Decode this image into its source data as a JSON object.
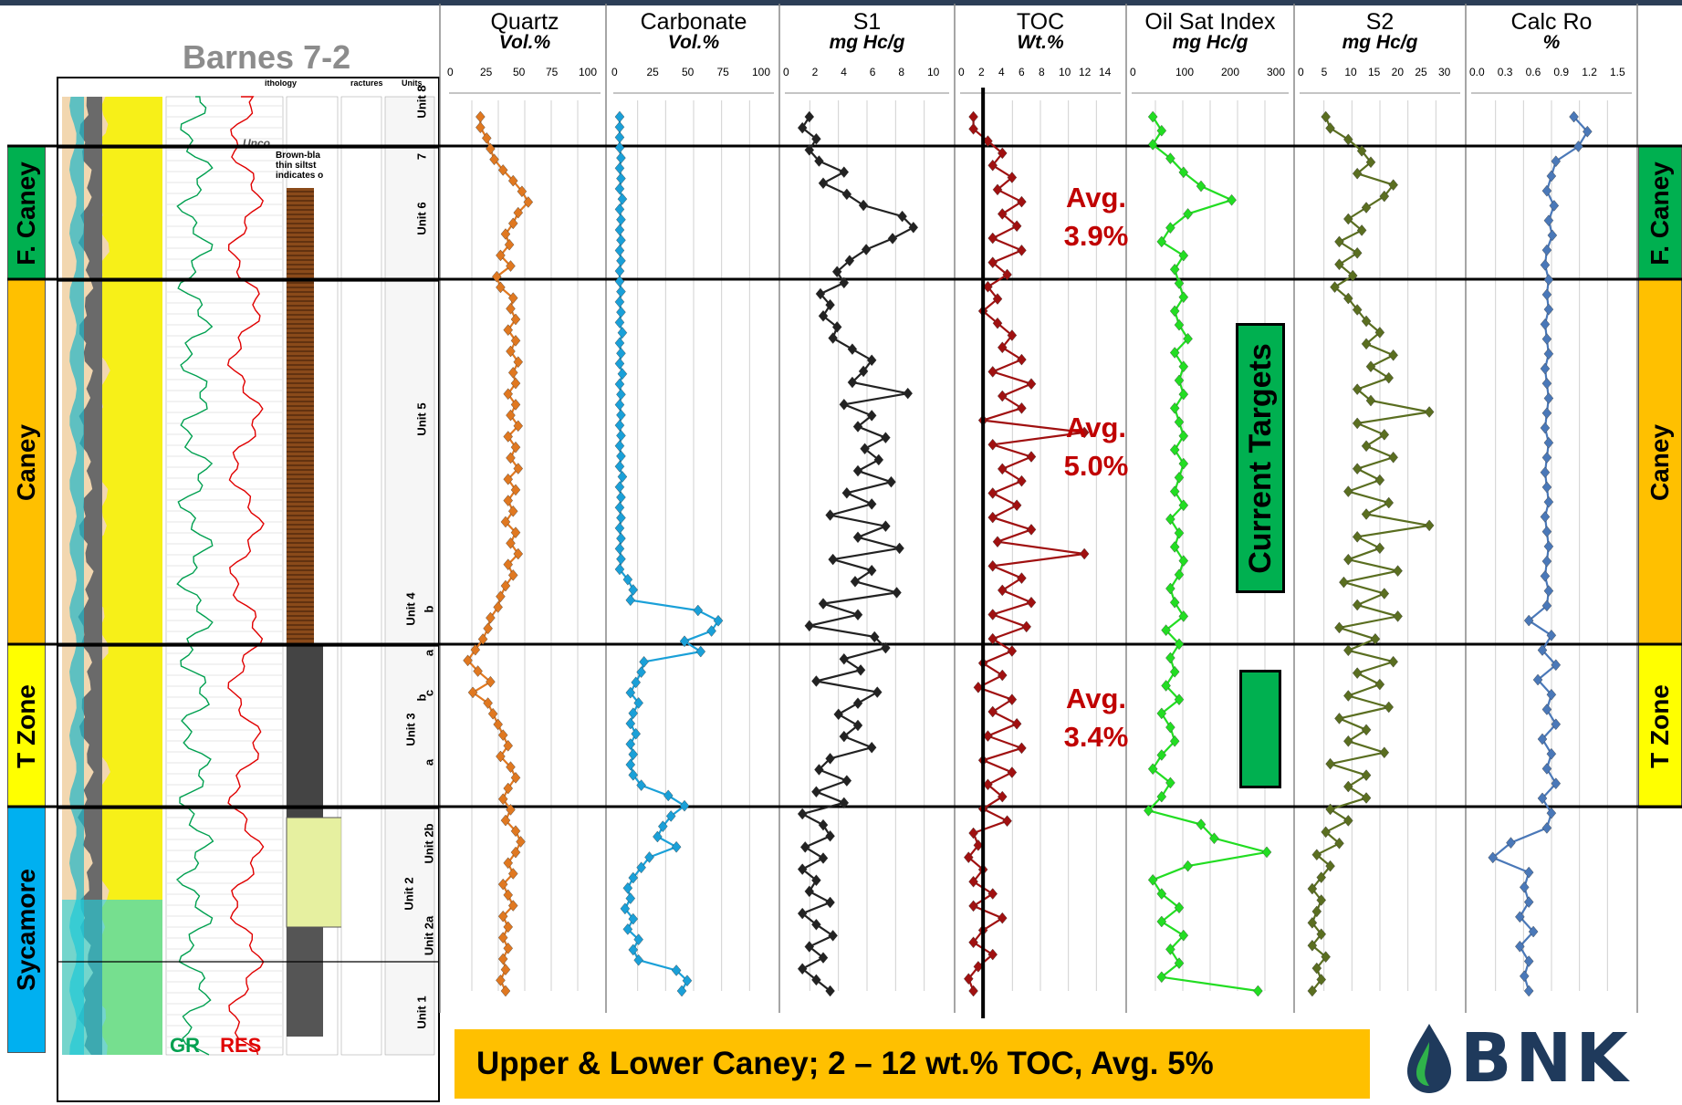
{
  "well_title": "Barnes 7-2",
  "zones_left": [
    {
      "label": "F. Caney",
      "color": "#00b050"
    },
    {
      "label": "Caney",
      "color": "#ffc000"
    },
    {
      "label": "T Zone",
      "color": "#ffff00"
    },
    {
      "label": "Sycamore",
      "color": "#00b0f0"
    }
  ],
  "zones_right": [
    {
      "label": "F. Caney",
      "color": "#00b050"
    },
    {
      "label": "Caney",
      "color": "#ffc000"
    },
    {
      "label": "T Zone",
      "color": "#ffff00"
    }
  ],
  "log_panel": {
    "column_headers": [
      "ithology",
      "ractures",
      "Units"
    ],
    "units": [
      "Unit 8",
      "7",
      "Unit 6",
      "Unit 5",
      "b",
      "Unit 4",
      "a",
      "c",
      "b",
      "Unit 3",
      "a",
      "Unit 2b",
      "Unit 2",
      "Unit 2a",
      "Unit 1"
    ],
    "annotations": [
      "Brown-bla",
      "thin siltst",
      "indicates o",
      "Unco"
    ],
    "gr_label": "GR",
    "res_label": "RES",
    "gr_color": "#00a050",
    "res_color": "#e00000"
  },
  "tracks": [
    {
      "name": "Quartz",
      "unit": "Vol.%",
      "ticks": [
        "0",
        "25",
        "50",
        "75",
        "100"
      ]
    },
    {
      "name": "Carbonate",
      "unit": "Vol.%",
      "ticks": [
        "0",
        "25",
        "50",
        "75",
        "100"
      ]
    },
    {
      "name": "S1",
      "unit": "mg Hc/g",
      "ticks": [
        "0",
        "2",
        "4",
        "6",
        "8",
        "10"
      ]
    },
    {
      "name": "TOC",
      "unit": "Wt.%",
      "ticks": [
        "0",
        "2",
        "4",
        "6",
        "8",
        "10",
        "12",
        "14"
      ]
    },
    {
      "name": "Oil Sat Index",
      "unit": "mg Hc/g",
      "ticks": [
        "0",
        "100",
        "200",
        "300"
      ]
    },
    {
      "name": "S2",
      "unit": "mg Hc/g",
      "ticks": [
        "0",
        "5",
        "10",
        "15",
        "20",
        "25",
        "30"
      ]
    },
    {
      "name": "Calc Ro",
      "unit": "%",
      "ticks": [
        "0.0",
        "0.3",
        "0.6",
        "0.9",
        "1.2",
        "1.5"
      ]
    }
  ],
  "averages": [
    {
      "line1": "Avg.",
      "line2": "3.9%"
    },
    {
      "line1": "Avg.",
      "line2": "5.0%"
    },
    {
      "line1": "Avg.",
      "line2": "3.4%"
    }
  ],
  "targets_label": "Current Targets",
  "banner_text": "Upper & Lower Caney; 2 – 12 wt.% TOC, Avg. 5%",
  "logo_text": "BNK",
  "colors": {
    "quartz": "#e07820",
    "carbonate": "#1aa0d8",
    "s1": "#222222",
    "toc": "#a01010",
    "osi": "#22dd22",
    "s2": "#5a6e20",
    "ro": "#4a78b8",
    "toc_cutoff": "#000000"
  },
  "chart_data": {
    "type": "line",
    "title": "Barnes 7-2",
    "ylabel": "",
    "y_direction": "depth increasing downward (relative sample index)",
    "grid": true,
    "series": [
      {
        "name": "Quartz",
        "xlim": [
          0,
          100
        ],
        "values": [
          22,
          22,
          27,
          30,
          33,
          40,
          48,
          55,
          60,
          52,
          48,
          42,
          45,
          38,
          46,
          35,
          38,
          48,
          46,
          50,
          44,
          50,
          46,
          52,
          48,
          50,
          44,
          50,
          46,
          52,
          44,
          50,
          46,
          52,
          44,
          50,
          44,
          48,
          42,
          50,
          46,
          52,
          44,
          48,
          42,
          38,
          36,
          30,
          28,
          24,
          18,
          12,
          20,
          30,
          16,
          28,
          32,
          36,
          40,
          44,
          38,
          46,
          50,
          44,
          40,
          46,
          42,
          50,
          54,
          50,
          44,
          48,
          40,
          44,
          48,
          40,
          44,
          40,
          44,
          40,
          42,
          38,
          42
        ]
      },
      {
        "name": "Carbonate",
        "xlim": [
          0,
          100
        ],
        "values": [
          2,
          2,
          2,
          2,
          3,
          2,
          3,
          2,
          4,
          2,
          3,
          2,
          3,
          2,
          3,
          2,
          2,
          3,
          2,
          3,
          2,
          4,
          2,
          3,
          2,
          4,
          2,
          3,
          2,
          3,
          2,
          3,
          2,
          3,
          2,
          4,
          2,
          3,
          2,
          3,
          2,
          3,
          2,
          3,
          2,
          8,
          12,
          10,
          60,
          75,
          70,
          50,
          62,
          20,
          18,
          14,
          10,
          16,
          12,
          10,
          14,
          10,
          12,
          10,
          12,
          18,
          38,
          50,
          40,
          34,
          30,
          44,
          24,
          18,
          12,
          8,
          10,
          6,
          12,
          8,
          16,
          12,
          16,
          44,
          52,
          48
        ]
      },
      {
        "name": "S1",
        "xlim": [
          0,
          10
        ],
        "values": [
          1.5,
          1.0,
          2.0,
          1.5,
          2.2,
          4.0,
          2.5,
          4.2,
          5.4,
          8.2,
          9.0,
          7.5,
          5.6,
          4.4,
          3.5,
          4.0,
          2.3,
          3.0,
          2.5,
          3.5,
          3.2,
          4.6,
          6.0,
          5.4,
          4.6,
          8.6,
          4.0,
          6.0,
          5.0,
          7.0,
          5.5,
          6.5,
          5.0,
          7.4,
          4.2,
          6.0,
          3.0,
          7.0,
          5.0,
          8.0,
          3.2,
          6.0,
          4.8,
          7.8,
          2.5,
          5.0,
          1.5,
          6.2,
          7.0,
          4.0,
          5.2,
          2.0,
          6.4,
          5.0,
          3.6,
          5.0,
          4.0,
          6.0,
          3.0,
          2.2,
          4.2,
          2.0,
          4.0,
          1.0,
          2.5,
          3.0,
          1.2,
          2.5,
          1.0,
          2.0,
          1.5,
          3.0,
          1.0,
          2.0,
          3.2,
          1.5,
          2.5,
          1.0,
          2.0,
          3.0
        ]
      },
      {
        "name": "TOC",
        "xlim": [
          0,
          14
        ],
        "values": [
          1.0,
          1.0,
          2.5,
          4.0,
          3.0,
          5.0,
          3.5,
          6.0,
          4.0,
          5.5,
          3.0,
          6.0,
          3.0,
          4.5,
          2.5,
          3.5,
          2.0,
          3.5,
          5.0,
          4.0,
          6.0,
          3.0,
          7.0,
          4.0,
          6.0,
          2.0,
          12.5,
          3.0,
          7.0,
          4.0,
          6.0,
          3.0,
          5.5,
          3.0,
          7.0,
          3.5,
          12.5,
          3.0,
          6.0,
          4.0,
          7.0,
          3.0,
          6.5,
          3.0,
          5.0,
          2.0,
          4.0,
          1.5,
          5.0,
          3.0,
          5.5,
          2.5,
          6.0,
          2.0,
          5.0,
          2.5,
          4.0,
          2.0,
          4.5,
          1.0,
          1.5,
          0.5,
          2.0,
          1.0,
          3.0,
          1.0,
          4.0,
          2.0,
          1.0,
          3.0,
          1.5,
          0.5,
          1.0
        ]
      },
      {
        "name": "Oil Sat Index",
        "xlim": [
          0,
          300
        ],
        "values": [
          40,
          60,
          40,
          80,
          110,
          150,
          220,
          120,
          80,
          60,
          110,
          90,
          100,
          110,
          90,
          100,
          120,
          90,
          110,
          100,
          110,
          90,
          100,
          110,
          90,
          110,
          100,
          90,
          110,
          80,
          100,
          90,
          110,
          100,
          80,
          90,
          110,
          70,
          100,
          80,
          90,
          70,
          100,
          60,
          80,
          90,
          60,
          40,
          80,
          60,
          30,
          150,
          180,
          300,
          120,
          40,
          60,
          100,
          60,
          110,
          80,
          100,
          60,
          280
        ]
      },
      {
        "name": "S2",
        "xlim": [
          0,
          30
        ],
        "values": [
          5,
          6,
          10,
          13,
          15,
          12,
          20,
          18,
          14,
          10,
          13,
          8,
          12,
          8,
          11,
          7,
          10,
          12,
          14,
          17,
          14,
          20,
          15,
          19,
          12,
          15,
          28,
          12,
          18,
          14,
          20,
          12,
          17,
          10,
          19,
          14,
          28,
          12,
          17,
          10,
          21,
          9,
          18,
          12,
          21,
          8,
          16,
          10,
          20,
          12,
          17,
          10,
          19,
          8,
          14,
          10,
          18,
          6,
          14,
          10,
          14,
          6,
          10,
          5,
          8,
          3,
          6,
          4,
          2,
          4,
          3,
          2,
          4,
          2,
          5,
          3,
          4,
          2
        ]
      },
      {
        "name": "Calc Ro",
        "xlim": [
          0,
          1.5
        ],
        "values": [
          1.1,
          1.25,
          1.15,
          0.9,
          0.85,
          0.8,
          0.88,
          0.82,
          0.86,
          0.8,
          0.78,
          0.82,
          0.8,
          0.82,
          0.78,
          0.8,
          0.82,
          0.78,
          0.8,
          0.82,
          0.8,
          0.78,
          0.82,
          0.8,
          0.78,
          0.8,
          0.82,
          0.78,
          0.8,
          0.82,
          0.8,
          0.78,
          0.82,
          0.8,
          0.6,
          0.85,
          0.75,
          0.9,
          0.7,
          0.85,
          0.8,
          0.9,
          0.75,
          0.85,
          0.8,
          0.9,
          0.75,
          0.85,
          0.8,
          0.4,
          0.2,
          0.6,
          0.55,
          0.6,
          0.5,
          0.65,
          0.5,
          0.6,
          0.55,
          0.6
        ]
      }
    ]
  }
}
